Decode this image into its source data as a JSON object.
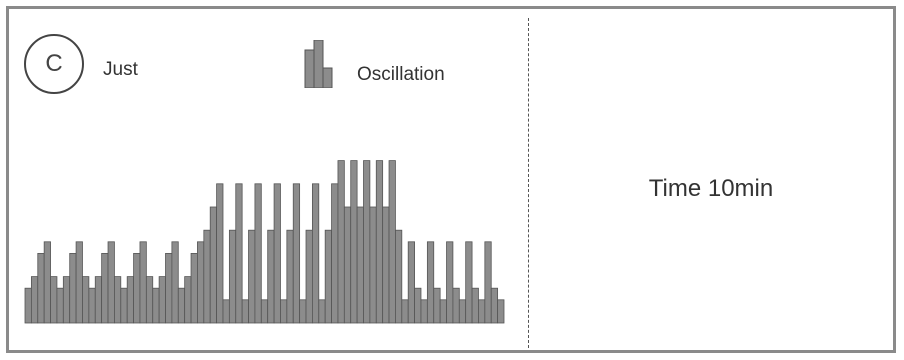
{
  "mode": {
    "letter": "C",
    "label": "Just"
  },
  "legend": {
    "icon": "oscillation-bars-icon",
    "label": "Oscillation"
  },
  "time_label": "Time 10min",
  "colors": {
    "bar_fill": "#8c8c8c",
    "bar_stroke": "#555555",
    "frame": "#8a8a8a"
  },
  "levels": [
    3,
    4,
    6,
    7,
    4,
    3,
    4,
    6,
    7,
    4,
    3,
    4,
    6,
    7,
    4,
    3,
    4,
    6,
    7,
    4,
    3,
    4,
    6,
    7,
    3,
    4,
    6,
    7,
    8,
    10,
    12,
    2,
    8,
    12,
    2,
    8,
    12,
    2,
    8,
    12,
    2,
    8,
    12,
    2,
    8,
    12,
    2,
    8,
    12,
    14,
    10,
    14,
    10,
    14,
    10,
    14,
    10,
    14,
    8,
    2,
    7,
    3,
    2,
    7,
    3,
    2,
    7,
    3,
    2,
    7,
    3,
    2,
    7,
    3,
    2
  ]
}
